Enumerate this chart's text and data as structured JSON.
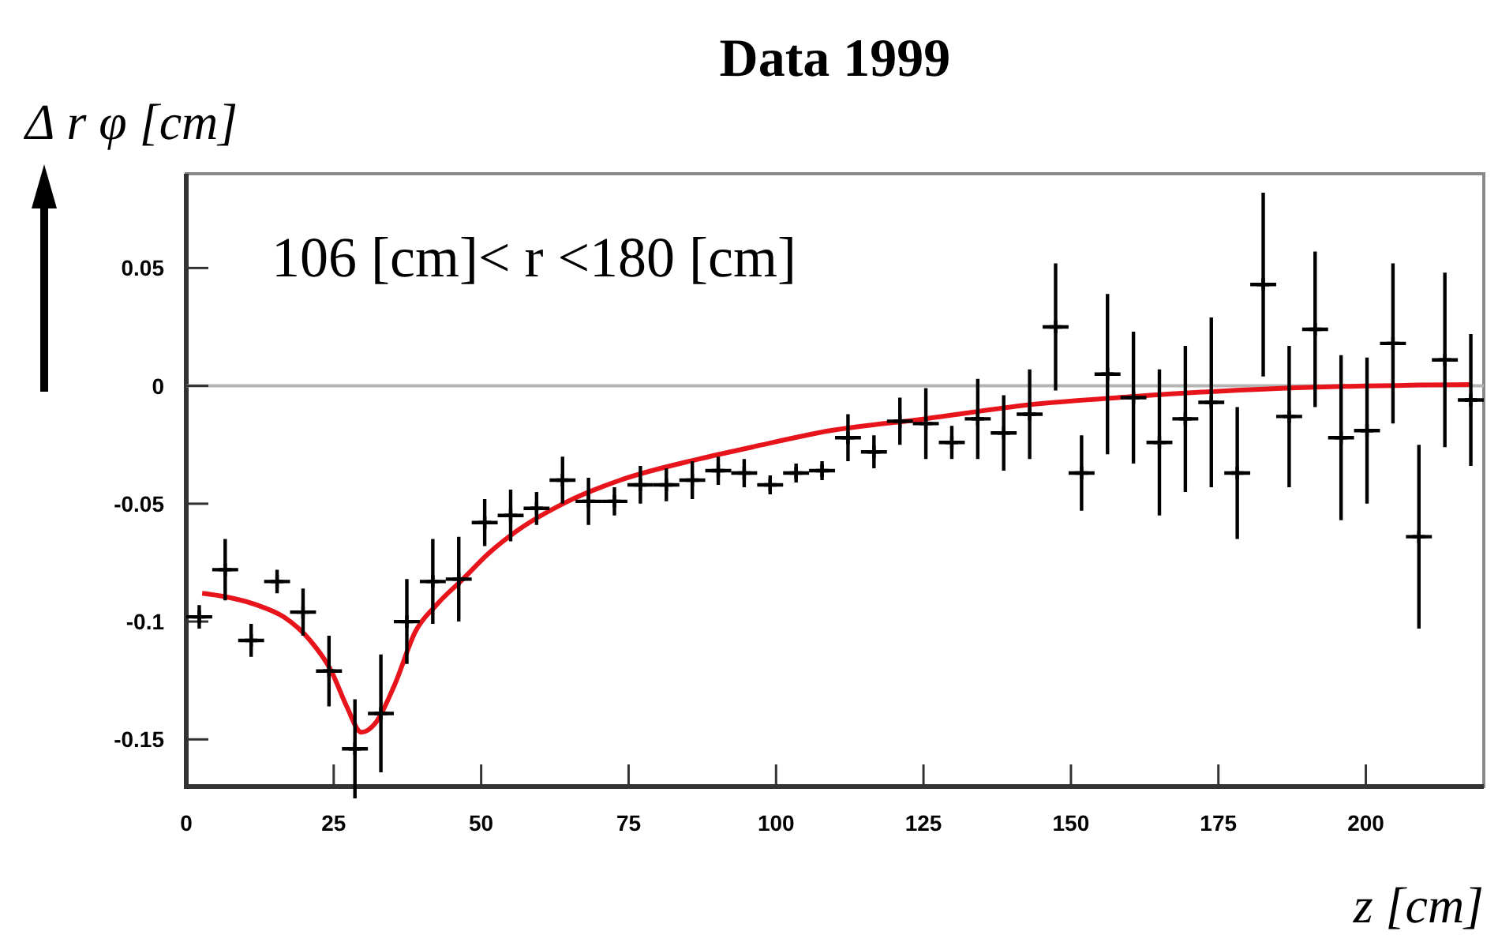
{
  "chart_data": {
    "type": "scatter",
    "title": "Data 1999",
    "xlabel": "z [cm]",
    "ylabel": "Δ r φ [cm]",
    "annotations": [
      "106 [cm]< r <180 [cm]"
    ],
    "xlim": [
      0,
      220
    ],
    "ylim": [
      -0.17,
      0.09
    ],
    "xticks": [
      0,
      25,
      50,
      75,
      100,
      125,
      150,
      175,
      200
    ],
    "yticks": [
      {
        "value": -0.15,
        "label": "-0.15"
      },
      {
        "value": -0.1,
        "label": "-0.1"
      },
      {
        "value": -0.05,
        "label": "-0.05"
      },
      {
        "value": 0,
        "label": "0"
      },
      {
        "value": 0.05,
        "label": "0.05"
      }
    ],
    "grid": false,
    "ref_lines": [
      {
        "axis": "y",
        "value": 0,
        "color": "#b4b4b4"
      }
    ],
    "series": [
      {
        "color": "#000000",
        "marker": "cross",
        "x": [
          2.2,
          6.6,
          11,
          15.4,
          19.8,
          24.2,
          28.6,
          33,
          37.4,
          41.8,
          46.2,
          50.6,
          55,
          59.4,
          63.8,
          68.2,
          72.6,
          77,
          81.4,
          85.8,
          90.2,
          94.6,
          99,
          103.4,
          107.8,
          112.2,
          116.6,
          121,
          125.4,
          129.8,
          134.2,
          138.6,
          143,
          147.4,
          151.8,
          156.2,
          160.6,
          165,
          169.4,
          173.8,
          178.2,
          182.6,
          187,
          191.4,
          195.8,
          200.2,
          204.6,
          209,
          213.4,
          217.8
        ],
        "values": [
          -0.098,
          -0.078,
          -0.108,
          -0.083,
          -0.096,
          -0.121,
          -0.154,
          -0.139,
          -0.1,
          -0.083,
          -0.082,
          -0.058,
          -0.055,
          -0.052,
          -0.04,
          -0.049,
          -0.049,
          -0.042,
          -0.042,
          -0.04,
          -0.036,
          -0.037,
          -0.042,
          -0.037,
          -0.036,
          -0.022,
          -0.028,
          -0.015,
          -0.016,
          -0.024,
          -0.014,
          -0.02,
          -0.012,
          0.025,
          -0.037,
          0.005,
          -0.005,
          -0.024,
          -0.014,
          -0.007,
          -0.037,
          0.043,
          -0.013,
          0.024,
          -0.022,
          -0.019,
          0.018,
          -0.064,
          0.011,
          -0.006
        ],
        "errors": [
          0.005,
          0.013,
          0.007,
          0.005,
          0.01,
          0.015,
          0.021,
          0.025,
          0.018,
          0.018,
          0.018,
          0.01,
          0.011,
          0.007,
          0.01,
          0.01,
          0.006,
          0.008,
          0.007,
          0.008,
          0.006,
          0.006,
          0.004,
          0.004,
          0.004,
          0.01,
          0.007,
          0.01,
          0.015,
          0.007,
          0.017,
          0.016,
          0.019,
          0.027,
          0.016,
          0.034,
          0.028,
          0.031,
          0.031,
          0.036,
          0.028,
          0.039,
          0.03,
          0.033,
          0.035,
          0.031,
          0.034,
          0.039,
          0.037,
          0.028
        ],
        "xerrors": [
          2.2,
          2.2,
          2.2,
          2.2,
          2.2,
          2.2,
          2.2,
          2.2,
          2.2,
          2.2,
          2.2,
          2.2,
          2.2,
          2.2,
          2.2,
          2.2,
          2.2,
          2.2,
          2.2,
          2.2,
          2.2,
          2.2,
          2.2,
          2.2,
          2.2,
          2.2,
          2.2,
          2.2,
          2.2,
          2.2,
          2.2,
          2.2,
          2.2,
          2.2,
          2.2,
          2.2,
          2.2,
          2.2,
          2.2,
          2.2,
          2.2,
          2.2,
          2.2,
          2.2,
          2.2,
          2.2,
          2.2,
          2.2,
          2.2,
          2.2
        ]
      },
      {
        "type": "line",
        "color": "#e8141c",
        "marker": "none",
        "x": [
          2.7,
          6.7,
          12,
          16.5,
          21,
          24.6,
          27.2,
          29.7,
          32.1,
          35.3,
          38.9,
          42.4,
          46.9,
          51.3,
          55.8,
          64.7,
          73.6,
          87,
          95.9,
          109.2,
          125.2,
          143,
          160.8,
          178.6,
          196.4,
          217.7
        ],
        "values": [
          -0.088,
          -0.0895,
          -0.093,
          -0.098,
          -0.108,
          -0.121,
          -0.136,
          -0.147,
          -0.143,
          -0.127,
          -0.104,
          -0.093,
          -0.082,
          -0.071,
          -0.062,
          -0.049,
          -0.04,
          -0.031,
          -0.026,
          -0.019,
          -0.014,
          -0.008,
          -0.0045,
          -0.0018,
          -0.0002,
          0.0005
        ]
      }
    ]
  }
}
